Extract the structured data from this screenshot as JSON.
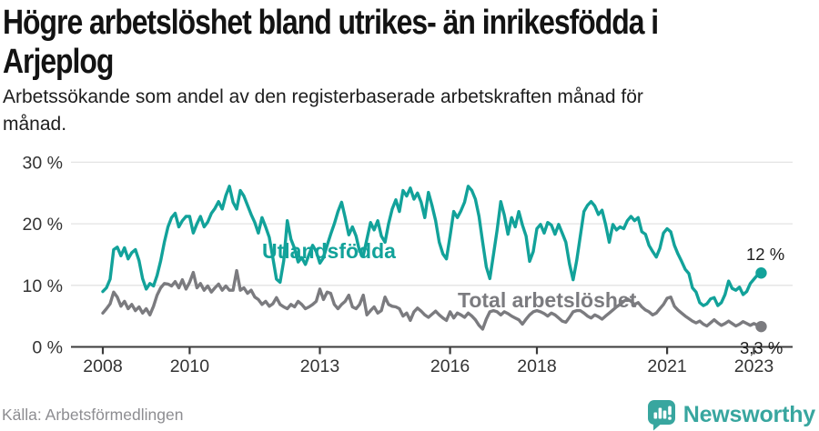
{
  "header": {
    "title_lines": [
      "Högre arbetslöshet bland utrikes- än inrikesfödda i",
      "Arjeplog"
    ],
    "subtitle_lines": [
      "Arbetssökande som andel av den registerbaserade arbetskraften månad för",
      "månad."
    ]
  },
  "footer": {
    "source": "Källa: Arbetsförmedlingen",
    "brand": "Newsworthy"
  },
  "colors": {
    "accent_teal": "#12a29a",
    "series_gray": "#7b7b7f",
    "end_label_text": "#1c1c1c",
    "grid": "#e3e3e3",
    "axis": "#3b3b3b",
    "tick_text": "#333333",
    "title_text": "#131313",
    "source_text": "#8d8d91",
    "brand_teal": "#38a69f"
  },
  "chart_data": {
    "type": "line",
    "title": "Högre arbetslöshet bland utrikes- än inrikesfödda i Arjeplog",
    "subtitle": "Arbetssökande som andel av den registerbaserade arbetskraften månad för månad.",
    "unit": "%",
    "frequency": "monthly",
    "x_start": "2008-01",
    "x_end": "2023-03",
    "x_tick_years": [
      2008,
      2010,
      2013,
      2016,
      2018,
      2021,
      2023
    ],
    "x_tick_labels": [
      "2008",
      "2010",
      "2013",
      "2016",
      "2018",
      "2021",
      "2023"
    ],
    "y_ticks": [
      0,
      10,
      20,
      30
    ],
    "y_tick_labels": [
      "0 %",
      "10 %",
      "20 %",
      "30 %"
    ],
    "ylim": [
      0,
      31
    ],
    "grid": "horizontal",
    "legend_position": "inline-labels",
    "series": [
      {
        "name": "Utlandsfödda",
        "color": "#12a29a",
        "end_label": "12 %",
        "end_value": 12,
        "values": [
          9.0,
          9.6,
          11.0,
          15.8,
          16.2,
          14.8,
          16.1,
          14.3,
          15.3,
          15.8,
          14.0,
          11.1,
          9.4,
          10.3,
          9.9,
          11.6,
          14.0,
          17.0,
          19.5,
          21.0,
          21.7,
          19.5,
          20.5,
          21.2,
          21.2,
          18.5,
          20.0,
          21.2,
          19.5,
          20.3,
          21.7,
          22.5,
          23.6,
          22.4,
          24.6,
          26.1,
          23.5,
          22.4,
          25.4,
          24.5,
          23.0,
          21.5,
          20.2,
          18.5,
          21.0,
          19.5,
          17.8,
          14.5,
          11.0,
          10.5,
          14.0,
          20.5,
          17.5,
          16.0,
          13.8,
          14.5,
          13.4,
          15.0,
          16.5,
          15.5,
          13.6,
          14.5,
          16.5,
          18.3,
          20.0,
          22.0,
          23.5,
          21.0,
          18.2,
          19.5,
          18.0,
          15.5,
          14.8,
          17.5,
          20.2,
          19.0,
          20.5,
          18.0,
          17.0,
          20.0,
          22.4,
          23.9,
          22.0,
          25.4,
          24.5,
          25.8,
          24.0,
          25.0,
          23.5,
          21.0,
          25.1,
          23.0,
          20.5,
          17.0,
          15.1,
          14.3,
          18.0,
          22.0,
          21.0,
          22.1,
          23.5,
          26.1,
          25.4,
          24.0,
          21.2,
          17.0,
          13.0,
          11.1,
          15.0,
          19.0,
          23.6,
          21.4,
          18.3,
          21.0,
          19.5,
          22.0,
          19.8,
          18.0,
          13.9,
          15.5,
          19.2,
          19.9,
          18.5,
          20.2,
          19.8,
          18.3,
          19.9,
          18.5,
          17.0,
          13.5,
          10.9,
          14.0,
          18.0,
          22.0,
          23.0,
          23.6,
          22.9,
          21.5,
          22.2,
          19.9,
          17.0,
          19.9,
          19.0,
          19.5,
          19.2,
          20.5,
          21.2,
          20.5,
          21.0,
          18.7,
          18.3,
          16.5,
          15.5,
          14.6,
          16.0,
          18.5,
          19.2,
          18.7,
          16.5,
          15.1,
          13.9,
          12.6,
          11.9,
          9.6,
          8.9,
          7.2,
          6.7,
          7.0,
          7.8,
          8.0,
          6.7,
          7.2,
          8.5,
          10.7,
          9.5,
          9.2,
          9.7,
          8.5,
          9.0,
          10.3,
          11.0,
          11.7,
          12.0
        ]
      },
      {
        "name": "Total arbetslöshet",
        "color": "#7b7b7f",
        "end_label": "3,3 %",
        "end_value": 3.3,
        "values": [
          5.5,
          6.2,
          7.0,
          8.9,
          8.1,
          6.6,
          7.4,
          6.2,
          6.9,
          5.9,
          6.5,
          5.5,
          6.2,
          5.2,
          6.6,
          8.4,
          9.6,
          10.3,
          10.2,
          9.9,
          10.6,
          9.6,
          10.9,
          9.4,
          10.5,
          12.1,
          9.6,
          10.3,
          9.2,
          9.9,
          8.9,
          9.6,
          10.2,
          9.2,
          9.9,
          9.2,
          9.2,
          12.4,
          9.2,
          9.6,
          8.7,
          9.2,
          8.1,
          7.7,
          6.9,
          7.4,
          6.6,
          7.0,
          8.0,
          6.9,
          6.5,
          6.2,
          6.9,
          6.5,
          7.4,
          6.9,
          6.2,
          6.5,
          6.9,
          7.4,
          9.4,
          7.7,
          8.9,
          8.7,
          6.9,
          6.2,
          6.9,
          7.4,
          8.4,
          6.5,
          6.2,
          6.9,
          8.4,
          5.2,
          5.9,
          6.5,
          5.5,
          5.9,
          8.1,
          6.9,
          6.6,
          6.5,
          6.2,
          5.0,
          5.5,
          4.3,
          5.7,
          6.3,
          5.8,
          5.2,
          4.8,
          5.3,
          5.8,
          5.2,
          4.7,
          4.3,
          5.7,
          4.7,
          5.5,
          5.2,
          4.8,
          5.5,
          5.0,
          4.4,
          3.5,
          2.9,
          4.5,
          5.7,
          5.9,
          5.7,
          5.2,
          5.7,
          5.4,
          5.0,
          4.7,
          4.4,
          3.7,
          4.5,
          5.2,
          5.7,
          5.9,
          5.7,
          5.4,
          5.0,
          5.5,
          5.2,
          4.7,
          4.2,
          4.0,
          4.8,
          5.7,
          5.9,
          5.9,
          5.5,
          5.0,
          4.7,
          5.2,
          4.9,
          4.5,
          5.0,
          5.5,
          6.0,
          6.5,
          6.9,
          7.4,
          7.8,
          7.4,
          6.9,
          7.2,
          6.5,
          6.0,
          5.7,
          5.2,
          5.5,
          6.2,
          6.9,
          7.9,
          8.1,
          6.6,
          6.0,
          5.5,
          5.0,
          4.6,
          4.2,
          3.9,
          4.2,
          3.7,
          3.4,
          3.9,
          4.4,
          3.9,
          3.5,
          3.8,
          4.2,
          3.8,
          3.4,
          3.7,
          4.1,
          3.8,
          3.5,
          3.8,
          3.5,
          3.3
        ]
      }
    ]
  }
}
